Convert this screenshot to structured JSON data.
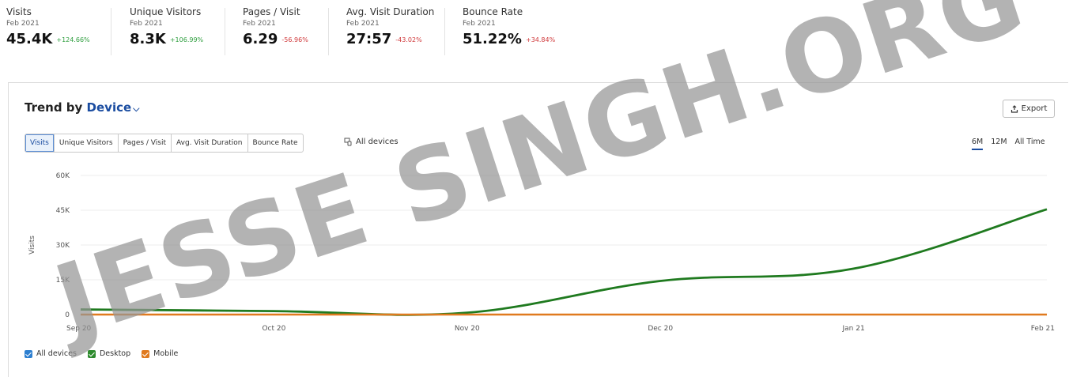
{
  "metrics": [
    {
      "title": "Visits",
      "date": "Feb 2021",
      "value": "45.4K",
      "change": "+124.66%",
      "change_color": "#2e9e3e"
    },
    {
      "title": "Unique Visitors",
      "date": "Feb 2021",
      "value": "8.3K",
      "change": "+106.99%",
      "change_color": "#2e9e3e"
    },
    {
      "title": "Pages / Visit",
      "date": "Feb 2021",
      "value": "6.29",
      "change": "-56.96%",
      "change_color": "#d0393b"
    },
    {
      "title": "Avg. Visit Duration",
      "date": "Feb 2021",
      "value": "27:57",
      "change": "-43.02%",
      "change_color": "#d0393b"
    },
    {
      "title": "Bounce Rate",
      "date": "Feb 2021",
      "value": "51.22%",
      "change": "+34.84%",
      "change_color": "#d0393b"
    }
  ],
  "card": {
    "title_prefix": "Trend by",
    "title_dimension": "Device",
    "export_label": "Export",
    "segments": [
      "Visits",
      "Unique Visitors",
      "Pages / Visit",
      "Avg. Visit Duration",
      "Bounce Rate"
    ],
    "active_segment": "Visits",
    "all_devices_label": "All devices",
    "ranges": [
      "6M",
      "12M",
      "All Time"
    ],
    "active_range": "6M"
  },
  "chart_data": {
    "type": "line",
    "ylabel": "Visits",
    "yticks": [
      "60K",
      "45K",
      "30K",
      "15K",
      "0"
    ],
    "ylim": [
      0,
      60000
    ],
    "x_labels": [
      "Sep 20",
      "Oct 20",
      "Nov 20",
      "Dec 20",
      "Jan 21",
      "Feb 21"
    ],
    "series": [
      {
        "name": "Desktop",
        "color": "#1f7a1f",
        "values": [
          2200,
          1500,
          800,
          14500,
          19800,
          45400
        ]
      },
      {
        "name": "Mobile",
        "color": "#e07a1f",
        "values": [
          0,
          0,
          0,
          0,
          0,
          0
        ]
      }
    ]
  },
  "legend": [
    {
      "label": "All devices",
      "color": "#2d7fd0"
    },
    {
      "label": "Desktop",
      "color": "#2e8b2e"
    },
    {
      "label": "Mobile",
      "color": "#e07a1f"
    }
  ],
  "watermark": "JESSE SINGH.ORG"
}
